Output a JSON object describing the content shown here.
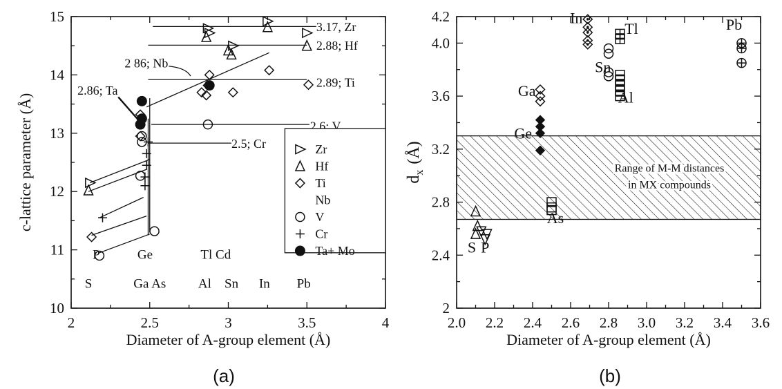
{
  "panels": {
    "a": {
      "caption": "(a)"
    },
    "b": {
      "caption": "(b)"
    }
  },
  "chart_data": [
    {
      "type": "scatter",
      "xlabel": "Diameter of A-group element (Å)",
      "ylabel": "c-lattice parameter (Å)",
      "xlim": [
        2,
        4
      ],
      "ylim": [
        10,
        15
      ],
      "xticks": [
        "2",
        "2.5",
        "3",
        "3.5",
        "4"
      ],
      "yticks": [
        "10",
        "11",
        "12",
        "13",
        "14",
        "15"
      ],
      "legend": {
        "placement": "right",
        "entries": [
          {
            "name": "Zr",
            "marker": "triangle-right"
          },
          {
            "name": "Hf",
            "marker": "triangle-up"
          },
          {
            "name": "Ti",
            "marker": "diamond"
          },
          {
            "name": "Nb",
            "marker": "none"
          },
          {
            "name": "V",
            "marker": "circle"
          },
          {
            "name": "Cr",
            "marker": "plus"
          },
          {
            "name": "Ta+ Mo",
            "marker": "filled-circle"
          }
        ]
      },
      "element_labels": [
        {
          "text": "P",
          "x": 2.16,
          "y": 10.85
        },
        {
          "text": "S",
          "x": 2.11,
          "y": 10.35
        },
        {
          "text": "Ge",
          "x": 2.47,
          "y": 10.85
        },
        {
          "text": "Ga As",
          "x": 2.5,
          "y": 10.35
        },
        {
          "text": "Tl Cd",
          "x": 2.92,
          "y": 10.85
        },
        {
          "text": "Al",
          "x": 2.85,
          "y": 10.35
        },
        {
          "text": "Sn",
          "x": 3.02,
          "y": 10.35
        },
        {
          "text": "In",
          "x": 3.23,
          "y": 10.35
        },
        {
          "text": "Pb",
          "x": 3.48,
          "y": 10.35
        }
      ],
      "annotations": [
        {
          "text": "3.17, Zr",
          "x": 3.56,
          "y": 14.82
        },
        {
          "text": "2.88; Hf",
          "x": 3.56,
          "y": 14.5
        },
        {
          "text": "2 86; Nb",
          "x": 2.34,
          "y": 14.2
        },
        {
          "text": "2.89; Ti",
          "x": 3.56,
          "y": 13.87
        },
        {
          "text": "2.86; Ta",
          "x": 2.04,
          "y": 13.73
        },
        {
          "text": "2.6; V",
          "x": 3.52,
          "y": 13.12
        },
        {
          "text": "2.5; Cr",
          "x": 3.02,
          "y": 12.82
        }
      ],
      "series": [
        {
          "name": "Zr",
          "marker": "triangle-right",
          "points": [
            [
              2.12,
              12.15
            ],
            [
              2.87,
              14.8
            ],
            [
              2.88,
              14.72
            ],
            [
              3.03,
              14.5
            ],
            [
              3.25,
              14.92
            ],
            [
              3.5,
              14.72
            ]
          ]
        },
        {
          "name": "Hf",
          "marker": "triangle-up",
          "points": [
            [
              2.11,
              12.02
            ],
            [
              2.86,
              14.65
            ],
            [
              3.0,
              14.42
            ],
            [
              3.02,
              14.35
            ],
            [
              3.25,
              14.82
            ],
            [
              3.5,
              14.5
            ]
          ]
        },
        {
          "name": "Ti",
          "marker": "diamond",
          "points": [
            [
              2.13,
              11.22
            ],
            [
              2.44,
              12.95
            ],
            [
              2.44,
              13.32
            ],
            [
              2.83,
              13.7
            ],
            [
              2.86,
              13.65
            ],
            [
              2.87,
              13.82
            ],
            [
              2.88,
              14.0
            ],
            [
              3.03,
              13.7
            ],
            [
              3.26,
              14.08
            ],
            [
              3.51,
              13.83
            ]
          ]
        },
        {
          "name": "V",
          "marker": "circle",
          "points": [
            [
              2.18,
              10.9
            ],
            [
              2.44,
              12.27
            ],
            [
              2.45,
              12.85
            ],
            [
              2.45,
              12.95
            ],
            [
              2.53,
              11.32
            ],
            [
              2.87,
              13.15
            ]
          ]
        },
        {
          "name": "Cr",
          "marker": "plus",
          "points": [
            [
              2.2,
              11.55
            ],
            [
              2.47,
              12.1
            ],
            [
              2.47,
              12.25
            ],
            [
              2.48,
              12.45
            ],
            [
              2.48,
              12.65
            ],
            [
              2.49,
              12.85
            ]
          ]
        },
        {
          "name": "Ta+ Mo",
          "marker": "filled-circle",
          "points": [
            [
              2.44,
              13.15
            ],
            [
              2.45,
              13.25
            ],
            [
              2.45,
              13.55
            ],
            [
              2.88,
              13.82
            ]
          ]
        }
      ],
      "trend_lines": [
        {
          "from": [
            2.12,
            12.15
          ],
          "to": [
            2.5,
            12.55
          ]
        },
        {
          "from": [
            2.11,
            12.0
          ],
          "to": [
            2.48,
            12.38
          ]
        },
        {
          "from": [
            2.18,
            11.55
          ],
          "to": [
            2.46,
            11.9
          ]
        },
        {
          "from": [
            2.13,
            11.25
          ],
          "to": [
            2.48,
            11.58
          ]
        },
        {
          "from": [
            2.18,
            10.95
          ],
          "to": [
            2.5,
            11.27
          ]
        },
        {
          "from": [
            2.48,
            13.45
          ],
          "to": [
            3.26,
            14.38
          ]
        },
        {
          "from": [
            2.49,
            11.25
          ],
          "to": [
            2.49,
            13.25
          ]
        },
        {
          "from": [
            2.5,
            11.3
          ],
          "to": [
            2.5,
            13.6
          ]
        }
      ],
      "reference_lines": [
        {
          "y": 14.83,
          "x": [
            2.52,
            3.56
          ]
        },
        {
          "y": 14.51,
          "x": [
            2.49,
            3.5
          ]
        },
        {
          "y": 13.92,
          "x": [
            2.49,
            3.5
          ]
        },
        {
          "y": 13.15,
          "x": [
            2.51,
            3.52
          ]
        },
        {
          "y": 12.83,
          "x": [
            2.49,
            3.02
          ]
        }
      ]
    },
    {
      "type": "scatter",
      "xlabel": "Diameter of A-group element (Å)",
      "ylabel": "dx (Å)",
      "ylabel_main": "d",
      "ylabel_sub": "x",
      "ylabel_unit": "(Å)",
      "xlim": [
        2.0,
        3.6
      ],
      "ylim": [
        2.0,
        4.2
      ],
      "xticks": [
        "2.0",
        "2.2",
        "2.4",
        "2.6",
        "2.8",
        "3.0",
        "3.2",
        "3.4",
        "3.6"
      ],
      "yticks": [
        "2",
        "2.4",
        "2.8",
        "3.2",
        "3.6",
        "4.0",
        "4.2"
      ],
      "shaded_band": {
        "ymin": 2.67,
        "ymax": 3.3,
        "pattern": "hatched"
      },
      "band_label": [
        "Range of M-M distances",
        "in MX compounds"
      ],
      "element_labels": [
        {
          "text": "In",
          "x": 2.63,
          "y": 4.15
        },
        {
          "text": "Tl",
          "x": 2.92,
          "y": 4.07
        },
        {
          "text": "Pb",
          "x": 3.46,
          "y": 4.1
        },
        {
          "text": "Sn",
          "x": 2.77,
          "y": 3.78
        },
        {
          "text": "Ga",
          "x": 2.37,
          "y": 3.6
        },
        {
          "text": "Al",
          "x": 2.89,
          "y": 3.55
        },
        {
          "text": "Ge",
          "x": 2.35,
          "y": 3.28
        },
        {
          "text": "As",
          "x": 2.52,
          "y": 2.64
        },
        {
          "text": "S",
          "x": 2.08,
          "y": 2.42
        },
        {
          "text": "P",
          "x": 2.15,
          "y": 2.42
        }
      ],
      "series": [
        {
          "element": "S",
          "marker": "triangle-up",
          "points": [
            [
              2.1,
              2.73
            ],
            [
              2.1,
              2.56
            ],
            [
              2.11,
              2.62
            ]
          ]
        },
        {
          "element": "P",
          "marker": "triangle-down",
          "points": [
            [
              2.13,
              2.58
            ],
            [
              2.15,
              2.52
            ],
            [
              2.16,
              2.56
            ]
          ]
        },
        {
          "element": "Ga",
          "marker": "open-diamond",
          "points": [
            [
              2.44,
              3.65
            ],
            [
              2.44,
              3.6
            ],
            [
              2.44,
              3.56
            ]
          ]
        },
        {
          "element": "Ge",
          "marker": "filled-diamond",
          "points": [
            [
              2.44,
              3.42
            ],
            [
              2.44,
              3.37
            ],
            [
              2.44,
              3.32
            ],
            [
              2.44,
              3.19
            ]
          ]
        },
        {
          "element": "As",
          "marker": "square",
          "points": [
            [
              2.5,
              2.8
            ],
            [
              2.5,
              2.76
            ],
            [
              2.5,
              2.74
            ]
          ]
        },
        {
          "element": "In",
          "marker": "diamond-dot",
          "points": [
            [
              2.69,
              4.18
            ],
            [
              2.69,
              4.12
            ],
            [
              2.69,
              4.08
            ],
            [
              2.69,
              4.02
            ],
            [
              2.69,
              3.99
            ]
          ]
        },
        {
          "element": "Sn",
          "marker": "circle",
          "points": [
            [
              2.8,
              3.96
            ],
            [
              2.8,
              3.92
            ],
            [
              2.8,
              3.78
            ],
            [
              2.8,
              3.75
            ]
          ]
        },
        {
          "element": "Tl",
          "marker": "boxed-plus",
          "points": [
            [
              2.86,
              4.07
            ],
            [
              2.86,
              4.03
            ]
          ]
        },
        {
          "element": "Al",
          "marker": "square-line",
          "points": [
            [
              2.86,
              3.76
            ],
            [
              2.86,
              3.72
            ],
            [
              2.86,
              3.68
            ],
            [
              2.86,
              3.64
            ],
            [
              2.86,
              3.6
            ]
          ]
        },
        {
          "element": "Pb",
          "marker": "circle-plus",
          "points": [
            [
              3.5,
              4.0
            ],
            [
              3.5,
              3.96
            ],
            [
              3.5,
              3.85
            ]
          ]
        }
      ]
    }
  ]
}
